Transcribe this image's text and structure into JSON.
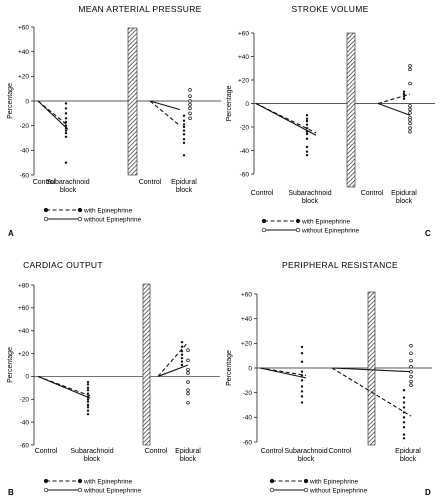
{
  "chart_data": [
    {
      "type": "scatter",
      "panel": "A",
      "title": "MEAN ARTERIAL PRESSURE",
      "ylabel": "Percentage",
      "ylim": [
        -60,
        60
      ],
      "yticks": [
        "+60",
        "+40",
        "+20",
        "0",
        "-20",
        "-40",
        "-60"
      ],
      "yticks_v": [
        60,
        40,
        20,
        0,
        -20,
        -40,
        -60
      ],
      "group_labels": [
        [
          "Control",
          "Subarachnoid",
          "block"
        ],
        [
          "Control",
          "Epidural",
          "block"
        ]
      ],
      "series": [
        {
          "name": "with Epinephrine",
          "groups": [
            {
              "line": [
                0,
                -20
              ],
              "points": [
                -2,
                -6,
                -10,
                -14,
                -17,
                -20,
                -22,
                -24,
                -26,
                -29,
                -50
              ]
            },
            {
              "line": [
                0,
                -20
              ],
              "points": [
                -12,
                -16,
                -19,
                -21,
                -24,
                -27,
                -31,
                -34,
                -44
              ]
            }
          ]
        },
        {
          "name": "without Epinephrine",
          "groups": [
            {
              "line": [
                0,
                -23
              ],
              "points": []
            },
            {
              "line": [
                0,
                -7
              ],
              "points": [
                9,
                4,
                0,
                -3,
                -6,
                -10,
                -14
              ]
            }
          ]
        }
      ]
    },
    {
      "type": "scatter",
      "panel": "C",
      "title": "STROKE VOLUME",
      "ylabel": "Percentage",
      "ylim": [
        -60,
        60
      ],
      "yticks": [
        "+60",
        "+40",
        "+20",
        "0",
        "-20",
        "-40",
        "-60"
      ],
      "yticks_v": [
        60,
        40,
        20,
        0,
        -20,
        -40,
        -60
      ],
      "group_labels": [
        [
          "Control",
          "Subarachnoid",
          "block"
        ],
        [
          "Control",
          "Epidural",
          "block"
        ]
      ],
      "series": [
        {
          "name": "with Epinephrine",
          "groups": [
            {
              "line": [
                0,
                -25
              ],
              "points": [
                -10,
                -13,
                -15,
                -18,
                -21,
                -24,
                -26,
                -30,
                -37,
                -41,
                -44
              ]
            },
            {
              "line": [
                0,
                8
              ],
              "points": [
                10,
                8,
                6,
                4
              ]
            }
          ]
        },
        {
          "name": "without Epinephrine",
          "groups": [
            {
              "line": [
                0,
                -27
              ],
              "points": []
            },
            {
              "line": [
                0,
                -10
              ],
              "points": [
                32,
                29,
                17,
                -2,
                -5,
                -8,
                -12,
                -14,
                -17,
                -21,
                -24
              ]
            }
          ]
        }
      ]
    },
    {
      "type": "scatter",
      "panel": "B",
      "title": "CARDIAC OUTPUT",
      "ylabel": "Percentage",
      "ylim": [
        -60,
        80
      ],
      "yticks": [
        "+80",
        "+60",
        "+40",
        "+20",
        "0",
        "-20",
        "-40",
        "-60"
      ],
      "yticks_v": [
        80,
        60,
        40,
        20,
        0,
        -20,
        -40,
        -60
      ],
      "group_labels": [
        [
          "Control",
          "Subarachnoid",
          "block"
        ],
        [
          "Control",
          "Epidural",
          "block"
        ]
      ],
      "series": [
        {
          "name": "with Epinephrine",
          "groups": [
            {
              "line": [
                0,
                -17
              ],
              "points": [
                -5,
                -7,
                -10,
                -12,
                -15,
                -18,
                -20,
                -22,
                -25,
                -27,
                -30,
                -33
              ]
            },
            {
              "line": [
                0,
                30
              ],
              "points": [
                30,
                26,
                22,
                19,
                16,
                13,
                10
              ]
            }
          ]
        },
        {
          "name": "without Epinephrine",
          "groups": [
            {
              "line": [
                0,
                -19
              ],
              "points": []
            },
            {
              "line": [
                0,
                10
              ],
              "points": [
                23,
                14,
                6,
                3,
                -5,
                -12,
                -15,
                -23
              ]
            }
          ]
        }
      ]
    },
    {
      "type": "scatter",
      "panel": "D",
      "title": "PERIPHERAL RESISTANCE",
      "ylabel": "Percentage",
      "ylim": [
        -60,
        60
      ],
      "yticks": [
        "+60",
        "+40",
        "+20",
        "0",
        "-20",
        "-40",
        "-60"
      ],
      "yticks_v": [
        60,
        40,
        20,
        0,
        -20,
        -40,
        -60
      ],
      "group_labels": [
        [
          "Control",
          "Subarachnoid",
          "block"
        ],
        [
          "Control",
          "Epidural",
          "block"
        ]
      ],
      "series": [
        {
          "name": "with Epinephrine",
          "groups": [
            {
              "line": [
                0,
                -6
              ],
              "points": [
                17,
                12,
                5,
                -3,
                -6,
                -10,
                -15,
                -19,
                -23,
                -28
              ]
            },
            {
              "line": [
                0,
                -39
              ],
              "points": [
                -18,
                -24,
                -28,
                -32,
                -36,
                -40,
                -44,
                -48,
                -54,
                -57
              ]
            }
          ]
        },
        {
          "name": "without Epinephrine",
          "groups": [
            {
              "line": [
                0,
                -8
              ],
              "points": []
            },
            {
              "line": [
                0,
                -3
              ],
              "points": [
                18,
                12,
                6,
                1,
                -3,
                -7,
                -11,
                -14
              ]
            }
          ]
        }
      ]
    }
  ]
}
